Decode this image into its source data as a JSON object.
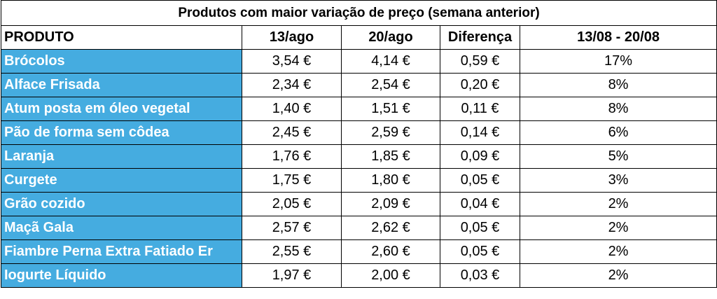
{
  "table": {
    "title": "Produtos com maior variação de preço (semana anterior)",
    "header": [
      "PRODUTO",
      "13/ago",
      "20/ago",
      "Diferença",
      "13/08 - 20/08"
    ],
    "rows": [
      [
        "Brócolos",
        "3,54 €",
        "4,14 €",
        "0,59 €",
        "17%"
      ],
      [
        "Alface Frisada",
        "2,34 €",
        "2,54 €",
        "0,20 €",
        "8%"
      ],
      [
        "Atum posta em óleo vegetal",
        "1,40 €",
        "1,51 €",
        "0,11 €",
        "8%"
      ],
      [
        "Pão de forma sem côdea",
        "2,45 €",
        "2,59 €",
        "0,14 €",
        "6%"
      ],
      [
        "Laranja",
        "1,76 €",
        "1,85 €",
        "0,09 €",
        "5%"
      ],
      [
        "Curgete",
        "1,75 €",
        "1,80 €",
        "0,05 €",
        "3%"
      ],
      [
        "Grão cozido",
        "2,05 €",
        "2,09 €",
        "0,04 €",
        "2%"
      ],
      [
        "Maçã Gala",
        "2,57 €",
        "2,62 €",
        "0,05 €",
        "2%"
      ],
      [
        "Fiambre Perna Extra Fatiado Er",
        "2,55 €",
        "2,60 €",
        "0,05 €",
        "2%"
      ],
      [
        "Iogurte Líquido",
        "1,97 €",
        "2,00 €",
        "0,03 €",
        "2%"
      ]
    ]
  }
}
